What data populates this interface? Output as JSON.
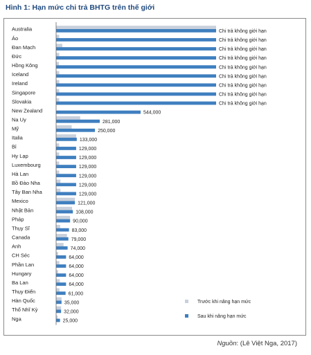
{
  "figure": {
    "title": "Hình 1: Hạn mức chi trả BHTG trên thế giới",
    "source_label": "Nguồn",
    "source_text": ": (Lê Việt Nga, 2017)"
  },
  "chart_data": {
    "type": "bar",
    "orientation": "horizontal",
    "categories": [
      "Australia",
      "Áo",
      "Đan Mạch",
      "Đức",
      "Hồng Kông",
      "Iceland",
      "Ireland",
      "Singapore",
      "Slovakia",
      "New Zealand",
      "Na Uy",
      "Mỹ",
      "Italia",
      "Bỉ",
      "Hy Lạp",
      "Luxembourg",
      "Hà Lan",
      "Bồ Đào Nha",
      "Tây Ban Nha",
      "Mexico",
      "Nhật Bản",
      "Pháp",
      "Thụy Sĩ",
      "Canada",
      "Anh",
      "CH Séc",
      "Phần Lan",
      "Hungary",
      "Ba Lan",
      "Thụy Điển",
      "Hàn Quốc",
      "Thổ Nhĩ Kỳ",
      "Nga"
    ],
    "series": [
      {
        "name": "Trước khi nâng hạn mức",
        "color": "#c8d0dc",
        "values": [
          1030000,
          20000,
          40000,
          20000,
          18000,
          20000,
          20000,
          20000,
          20000,
          0,
          155000,
          100000,
          129000,
          20000,
          20000,
          20000,
          20000,
          28000,
          28000,
          121000,
          103000,
          90000,
          26000,
          70000,
          48000,
          13000,
          21000,
          13000,
          24000,
          22000,
          35000,
          32000,
          10000
        ]
      },
      {
        "name": "Sau khi nâng hạn mức",
        "color": "#3f7fbf",
        "values": [
          1030000,
          1030000,
          1030000,
          1030000,
          1030000,
          1030000,
          1030000,
          1030000,
          1030000,
          544000,
          281000,
          250000,
          133000,
          129000,
          129000,
          129000,
          129000,
          129000,
          129000,
          121000,
          108000,
          90000,
          83000,
          79000,
          74000,
          64000,
          64000,
          64000,
          64000,
          61000,
          35000,
          32000,
          25000
        ]
      }
    ],
    "data_labels": [
      "Chi trả không giới hạn",
      "Chi trả không giới hạn",
      "Chi trả không giới hạn",
      "Chi trả không giới hạn",
      "Chi trả không giới hạn",
      "Chi trả không giới hạn",
      "Chi trả không giới hạn",
      "Chi trả không giới hạn",
      "Chi trả không giới hạn",
      "544,000",
      "281,000",
      "250,000",
      "133,000",
      "129,000",
      "129,000",
      "129,000",
      "129,000",
      "129,000",
      "129,000",
      "121,000",
      "108,000",
      "90,000",
      "83,000",
      "79,000",
      "74,000",
      "64,000",
      "64,000",
      "64,000",
      "64,000",
      "61,000",
      "35,000",
      "32,000",
      "25,000"
    ],
    "xlim": [
      0,
      1030000
    ],
    "grid": false,
    "legend_position": "bottom-right"
  }
}
